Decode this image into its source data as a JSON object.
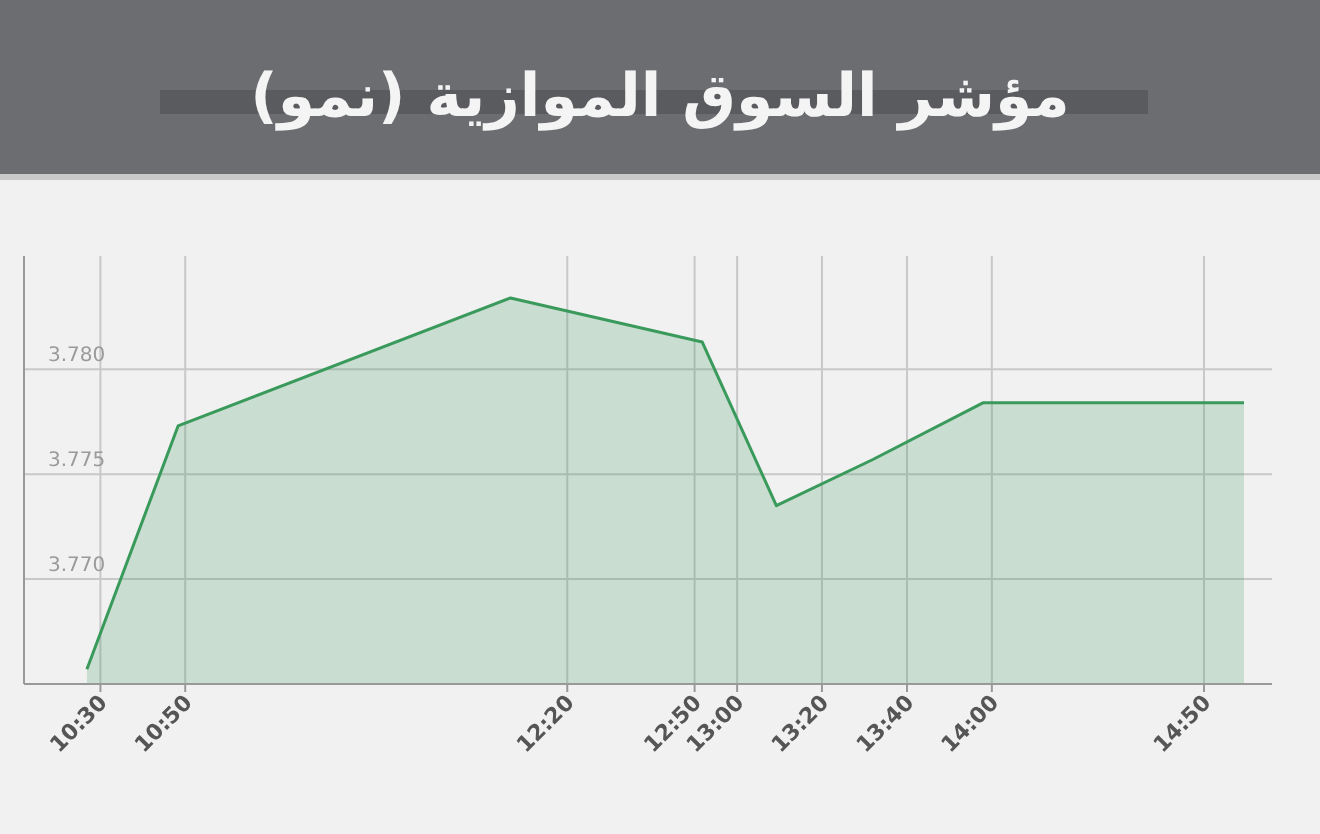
{
  "chart_data": {
    "type": "area",
    "title": "مؤشر السوق الموازية (نمو)",
    "x": [
      10.447,
      10.805,
      12.11,
      12.863,
      13.154,
      13.533,
      13.965,
      14.99
    ],
    "series": [
      {
        "color": "#3a9a5c",
        "values": [
          3.7657,
          3.7773,
          3.7834,
          3.7813,
          3.7735,
          3.7757,
          3.7784,
          3.7784
        ]
      }
    ],
    "xlim": [
      10.2,
      15.1
    ],
    "xticks": [
      {
        "value": 10.5,
        "label": "10:30"
      },
      {
        "value": 10.833,
        "label": "10:50"
      },
      {
        "value": 12.333,
        "label": "12:20"
      },
      {
        "value": 12.833,
        "label": "12:50"
      },
      {
        "value": 13,
        "label": "13:00"
      },
      {
        "value": 13.333,
        "label": "13:20"
      },
      {
        "value": 13.667,
        "label": "13:40"
      },
      {
        "value": 14,
        "label": "14:00"
      },
      {
        "value": 14.833,
        "label": "14:50"
      }
    ],
    "ylim": [
      3.765,
      3.7854
    ],
    "yticks": [
      {
        "value": 3.77,
        "label": "3.770"
      },
      {
        "value": 3.775,
        "label": "3.775"
      },
      {
        "value": 3.78,
        "label": "3.780"
      }
    ],
    "grid": true
  }
}
